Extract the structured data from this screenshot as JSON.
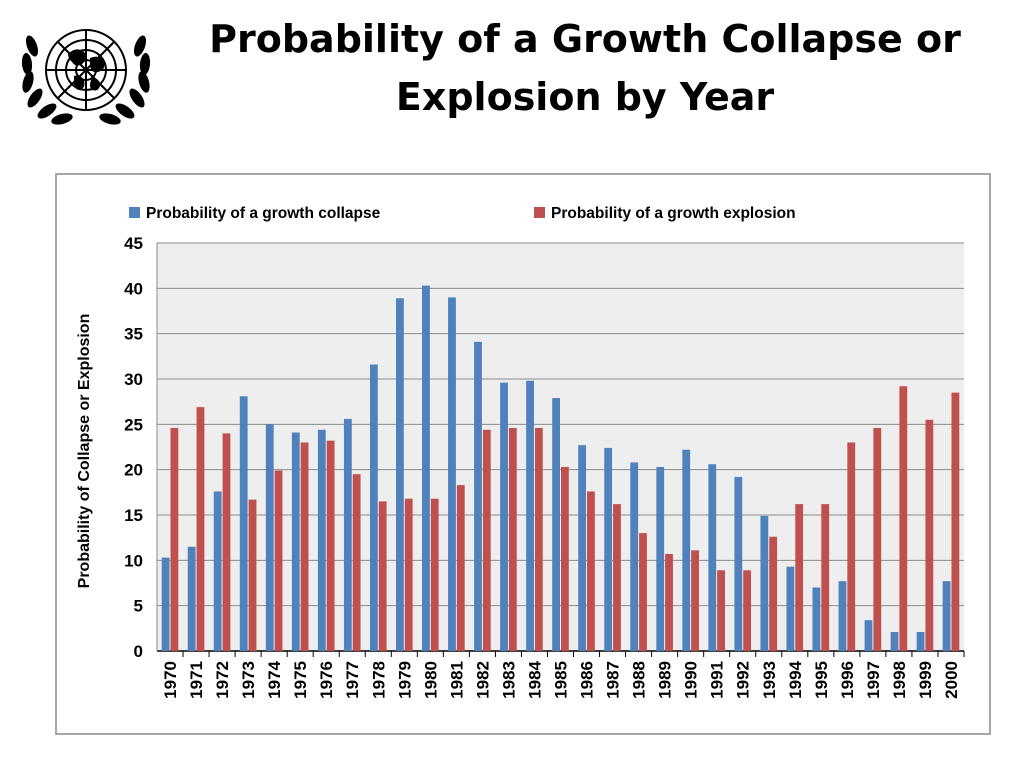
{
  "slide": {
    "title_line1": "Probability of a Growth Collapse or",
    "title_line2": "Explosion by Year",
    "logo_icon": "un-emblem-icon"
  },
  "chart_data": {
    "type": "bar",
    "title": "",
    "xlabel": "",
    "ylabel": "Probability of Collapse or Explosion",
    "ylim": [
      0,
      45
    ],
    "yticks": [
      0,
      5,
      10,
      15,
      20,
      25,
      30,
      35,
      40,
      45
    ],
    "grid": true,
    "legend_position": "top",
    "categories": [
      "1970",
      "1971",
      "1972",
      "1973",
      "1974",
      "1975",
      "1976",
      "1977",
      "1978",
      "1979",
      "1980",
      "1981",
      "1982",
      "1983",
      "1984",
      "1985",
      "1986",
      "1987",
      "1988",
      "1989",
      "1990",
      "1991",
      "1992",
      "1993",
      "1994",
      "1995",
      "1996",
      "1997",
      "1998",
      "1999",
      "2000"
    ],
    "series": [
      {
        "name": "Probability of a growth collapse",
        "color": "#4f81bd",
        "values": [
          10.3,
          11.5,
          17.6,
          28.1,
          25.0,
          24.1,
          24.4,
          25.6,
          31.6,
          38.9,
          40.3,
          39.0,
          34.1,
          29.6,
          29.8,
          27.9,
          22.7,
          22.4,
          20.8,
          20.3,
          22.2,
          20.6,
          19.2,
          14.9,
          9.3,
          7.0,
          7.7,
          3.4,
          2.1,
          2.1,
          7.7
        ]
      },
      {
        "name": "Probability of a growth explosion",
        "color": "#c0504d",
        "values": [
          24.6,
          26.9,
          24.0,
          16.7,
          19.9,
          23.0,
          23.2,
          19.5,
          16.5,
          16.8,
          16.8,
          18.3,
          24.4,
          24.6,
          24.6,
          20.3,
          17.6,
          16.2,
          13.0,
          10.7,
          11.1,
          8.9,
          8.9,
          12.6,
          16.2,
          16.2,
          23.0,
          24.6,
          29.2,
          25.5,
          28.5
        ]
      }
    ]
  }
}
